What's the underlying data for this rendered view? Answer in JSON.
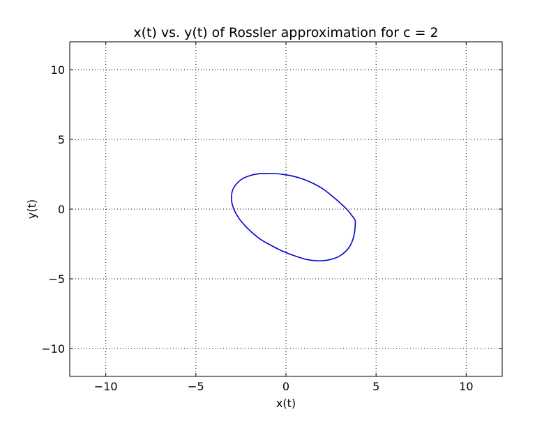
{
  "chart_data": {
    "type": "line",
    "title": "x(t) vs. y(t) of Rossler approximation for c = 2",
    "xlabel": "x(t)",
    "ylabel": "y(t)",
    "xlim": [
      -12,
      12
    ],
    "ylim": [
      -12,
      12
    ],
    "xticks": [
      -10,
      -5,
      0,
      5,
      10
    ],
    "yticks": [
      -10,
      -5,
      0,
      5,
      10
    ],
    "xtick_labels": [
      "−10",
      "−5",
      "0",
      "5",
      "10"
    ],
    "ytick_labels": [
      "−10",
      "−5",
      "0",
      "5",
      "10"
    ],
    "grid": true,
    "series": [
      {
        "color": "#0000cc",
        "x": [
          3.85,
          3.82,
          3.72,
          3.55,
          3.3,
          3.0,
          2.65,
          2.25,
          1.8,
          1.35,
          0.9,
          0.45,
          0.0,
          -0.45,
          -0.9,
          -1.4,
          -1.85,
          -2.25,
          -2.6,
          -2.85,
          -3.0,
          -3.02,
          -2.95,
          -2.75,
          -2.45,
          -2.05,
          -1.6,
          -1.1,
          -0.6,
          -0.1,
          0.4,
          0.95,
          1.5,
          2.05,
          2.55,
          3.0,
          3.4,
          3.65,
          3.82,
          3.85
        ],
        "y": [
          -0.9,
          -1.55,
          -2.15,
          -2.65,
          -3.05,
          -3.35,
          -3.55,
          -3.67,
          -3.71,
          -3.66,
          -3.53,
          -3.34,
          -3.12,
          -2.86,
          -2.55,
          -2.18,
          -1.72,
          -1.22,
          -0.68,
          -0.12,
          0.45,
          0.95,
          1.4,
          1.8,
          2.15,
          2.38,
          2.52,
          2.56,
          2.55,
          2.48,
          2.36,
          2.15,
          1.85,
          1.45,
          0.95,
          0.45,
          -0.05,
          -0.45,
          -0.75,
          -0.9
        ]
      }
    ]
  }
}
